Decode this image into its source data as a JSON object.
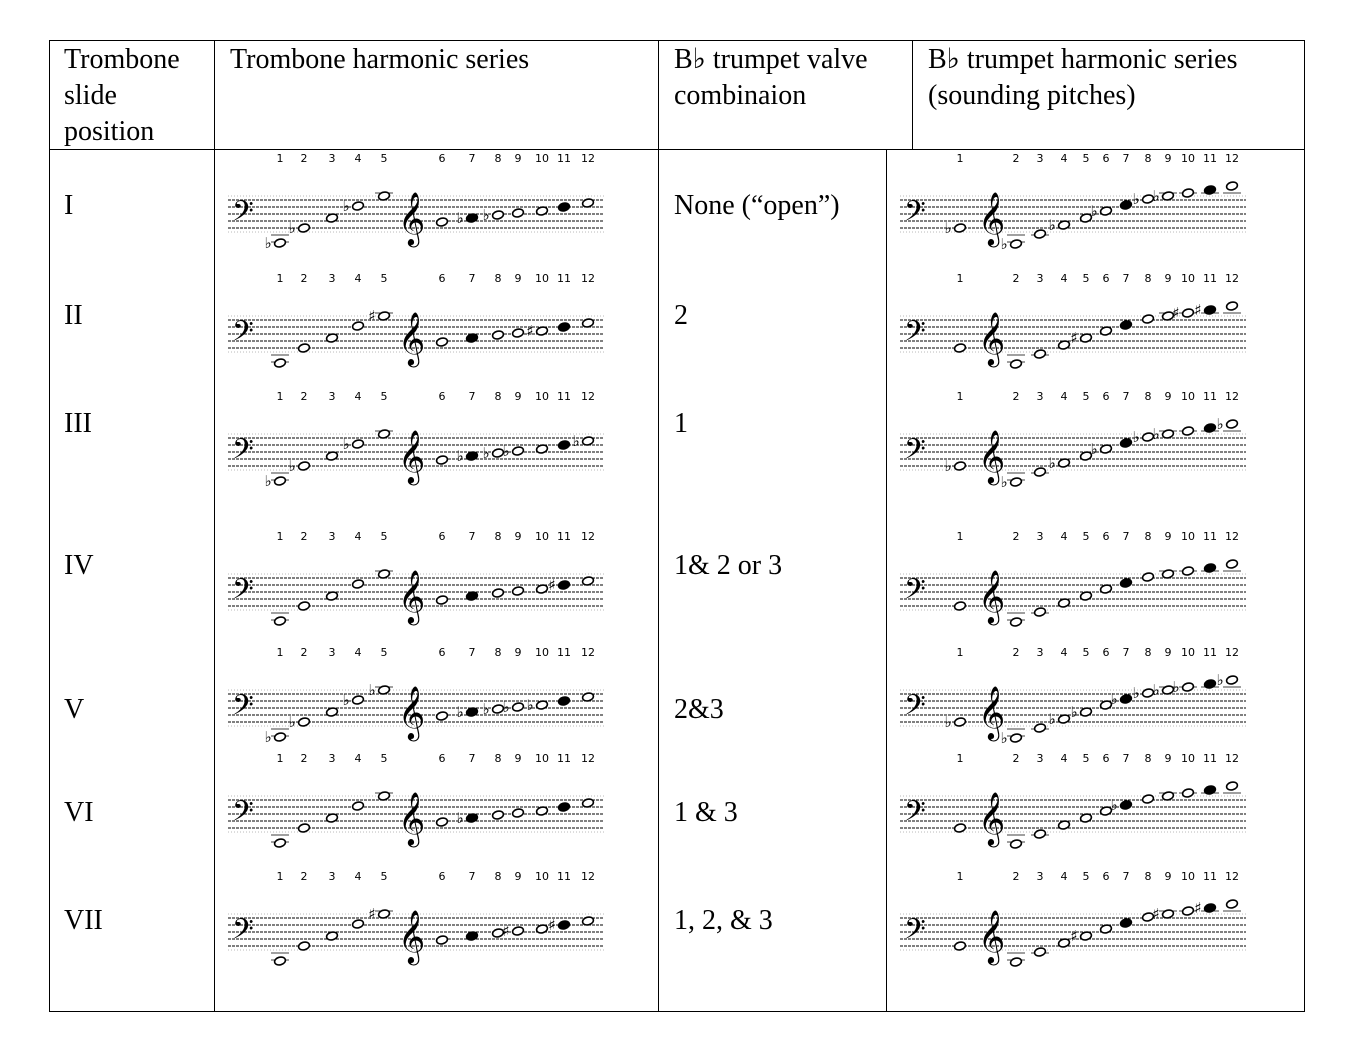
{
  "headers": {
    "position": "Trombone\nslide\nposition",
    "trombone_series": "Trombone harmonic series",
    "trumpet_valve": "B♭ trumpet valve\ncombinaion",
    "trumpet_series": "B♭ trumpet harmonic series\n(sounding pitches)"
  },
  "rows": [
    {
      "position": "I",
      "valves": "None (“open”)"
    },
    {
      "position": "II",
      "valves": "2"
    },
    {
      "position": "III",
      "valves": "1"
    },
    {
      "position": "IV",
      "valves": "1& 2 or 3"
    },
    {
      "position": "V",
      "valves": "2&3"
    },
    {
      "position": "VI",
      "valves": "1 & 3"
    },
    {
      "position": "VII",
      "valves": "1, 2, & 3"
    }
  ],
  "harmonic_numbers": [
    "1",
    "2",
    "3",
    "4",
    "5",
    "6",
    "7",
    "8",
    "9",
    "10",
    "11",
    "12"
  ],
  "glyphs": {
    "bass_clef": "𝄢",
    "treble_clef": "𝄞",
    "flat": "♭",
    "sharp": "♯"
  },
  "trombone_accidentals": [
    [
      "b",
      "b",
      "",
      "b",
      "",
      "",
      "b",
      "b",
      "",
      "",
      "",
      ""
    ],
    [
      "",
      "",
      "",
      "",
      "#",
      "",
      "",
      "",
      "",
      "#",
      "",
      ""
    ],
    [
      "b",
      "b",
      "",
      "b",
      "",
      "",
      "b",
      "b",
      "b",
      "",
      "",
      "b"
    ],
    [
      "",
      "",
      "",
      "",
      "",
      "",
      "",
      "",
      "",
      "",
      "#",
      ""
    ],
    [
      "b",
      "b",
      "",
      "b",
      "b",
      "",
      "b",
      "b",
      "b",
      "b",
      "",
      ""
    ],
    [
      "",
      "",
      "",
      "",
      "",
      "",
      "b",
      "",
      "",
      "",
      "",
      ""
    ],
    [
      "",
      "",
      "",
      "",
      "#",
      "",
      "",
      "",
      "#",
      "",
      "#",
      ""
    ]
  ],
  "trumpet_accidentals": [
    [
      "b",
      "b",
      "",
      "b",
      "",
      "b",
      "",
      "b",
      "b",
      "",
      "",
      ""
    ],
    [
      "",
      "",
      "",
      "",
      "#",
      "",
      "",
      "",
      "",
      "#",
      "#",
      ""
    ],
    [
      "b",
      "b",
      "",
      "b",
      "",
      "b",
      "",
      "b",
      "b",
      "",
      "",
      "b"
    ],
    [
      "",
      "",
      "",
      "",
      "",
      "",
      "",
      "",
      "",
      "",
      "",
      ""
    ],
    [
      "b",
      "b",
      "",
      "b",
      "b",
      "",
      "b",
      "b",
      "b",
      "b",
      "",
      "b"
    ],
    [
      "",
      "",
      "",
      "",
      "",
      "",
      "b",
      "",
      "",
      "",
      "",
      ""
    ],
    [
      "",
      "",
      "",
      "",
      "#",
      "",
      "",
      "",
      "#",
      "",
      "#",
      ""
    ]
  ]
}
